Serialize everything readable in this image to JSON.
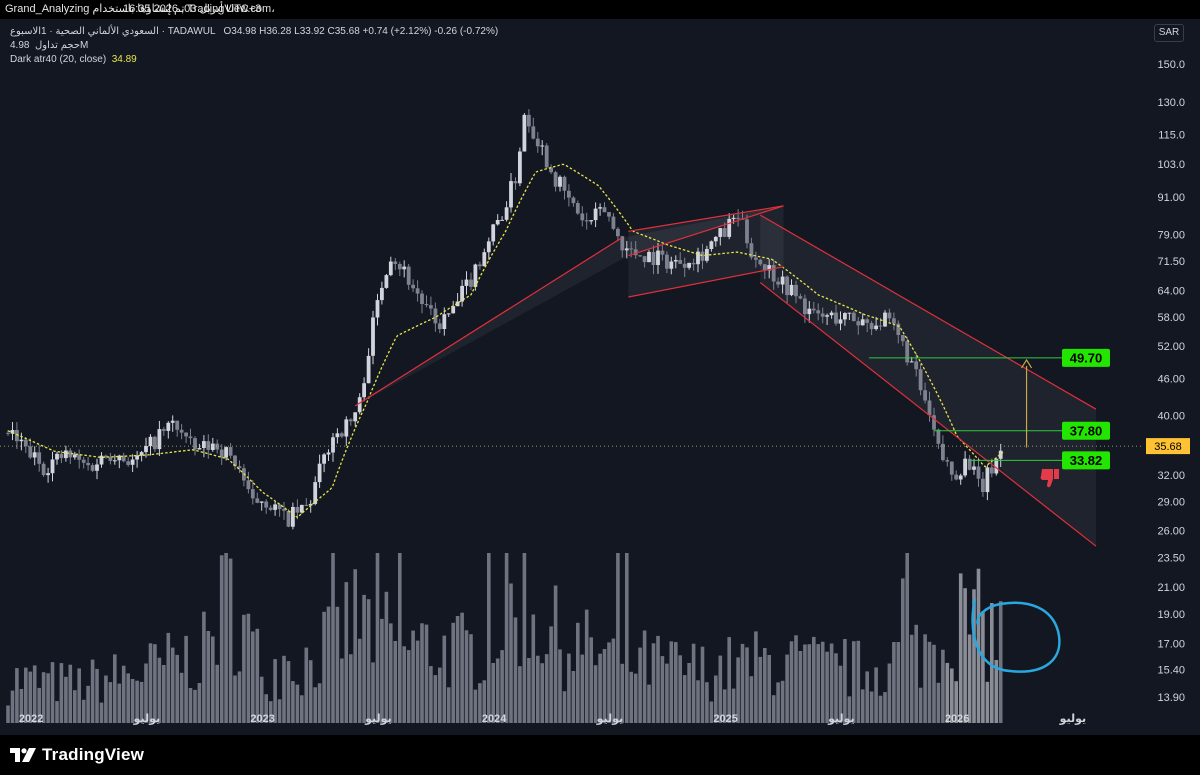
{
  "header": {
    "attribution": "Grand_Analyzing تم إنشاؤها باستخدام TradingView.com،",
    "timestamp": "16:35 2026 ,03 أبريل UTC+3"
  },
  "legend": {
    "symbol": "السعودي الألماني الصحية · 1الاسبوع · TADAWUL",
    "open_label": "O",
    "open": "34.98",
    "high_label": "H",
    "high": "36.28",
    "low_label": "L",
    "low": "33.92",
    "close_label": "C",
    "close": "35.68",
    "change": "+0.74 (+2.12%)",
    "change2": "-0.26 (-0.72%)",
    "volume_label": "حجم تداول",
    "volume": "4.98M",
    "indicator": "Dark atr40 (20, close)",
    "indicator_value": "34.89"
  },
  "currency": "SAR",
  "colors": {
    "background": "#131722",
    "candle_up": "#d1d4dc",
    "candle_down": "#7e8290",
    "moving_average": "#e8e44a",
    "trendline": "#e0303a",
    "target_line": "#2ecc40",
    "target_label_bg": "#22e600",
    "annotation_circle": "#29a8e0"
  },
  "icons": {
    "logo": "tradingview-logo-icon",
    "hand": "thumbs-down-icon"
  },
  "footer": {
    "brand": "TradingView"
  },
  "chart_data": {
    "type": "candlestick",
    "interval": "1W",
    "y_scale": "log",
    "ylim": [
      13.0,
      155.0
    ],
    "y_ticks": [
      "150.0",
      "130.0",
      "115.0",
      "103.0",
      "91.00",
      "79.00",
      "71.50",
      "64.00",
      "58.00",
      "52.00",
      "46.00",
      "40.00",
      "35.68",
      "32.00",
      "29.00",
      "26.00",
      "23.50",
      "21.00",
      "19.00",
      "17.00",
      "15.40",
      "13.90"
    ],
    "current_price": "35.68",
    "x_labels": [
      "2022",
      "يوليو",
      "2023",
      "يوليو",
      "2024",
      "يوليو",
      "2025",
      "يوليو",
      "2026",
      "يوليو"
    ],
    "price_path": [
      [
        2021.9,
        37.5
      ],
      [
        2022.05,
        33
      ],
      [
        2022.15,
        34.5
      ],
      [
        2022.25,
        33
      ],
      [
        2022.35,
        35
      ],
      [
        2022.45,
        33.5
      ],
      [
        2022.55,
        37
      ],
      [
        2022.62,
        39
      ],
      [
        2022.7,
        35
      ],
      [
        2022.8,
        36
      ],
      [
        2022.9,
        33
      ],
      [
        2022.95,
        28.5
      ],
      [
        2023.0,
        29.5
      ],
      [
        2023.1,
        27
      ],
      [
        2023.2,
        28.5
      ],
      [
        2023.3,
        37
      ],
      [
        2023.38,
        39
      ],
      [
        2023.42,
        42
      ],
      [
        2023.5,
        62
      ],
      [
        2023.55,
        74
      ],
      [
        2023.6,
        70
      ],
      [
        2023.68,
        62
      ],
      [
        2023.75,
        56
      ],
      [
        2023.82,
        59
      ],
      [
        2023.9,
        67
      ],
      [
        2023.98,
        78
      ],
      [
        2024.05,
        88
      ],
      [
        2024.1,
        100
      ],
      [
        2024.13,
        125
      ],
      [
        2024.18,
        115
      ],
      [
        2024.25,
        100
      ],
      [
        2024.32,
        90
      ],
      [
        2024.4,
        82
      ],
      [
        2024.48,
        87
      ],
      [
        2024.52,
        80
      ],
      [
        2024.58,
        74
      ],
      [
        2024.68,
        73
      ],
      [
        2024.78,
        71
      ],
      [
        2024.9,
        74
      ],
      [
        2025.0,
        80
      ],
      [
        2025.05,
        85
      ],
      [
        2025.12,
        73
      ],
      [
        2025.25,
        66
      ],
      [
        2025.38,
        58
      ],
      [
        2025.5,
        58
      ],
      [
        2025.6,
        57
      ],
      [
        2025.7,
        57
      ],
      [
        2025.78,
        51
      ],
      [
        2025.86,
        42
      ],
      [
        2025.92,
        35
      ],
      [
        2025.98,
        32
      ],
      [
        2026.05,
        34
      ],
      [
        2026.1,
        30
      ],
      [
        2026.15,
        33
      ],
      [
        2026.2,
        35.68
      ]
    ],
    "volume_path": [
      [
        2021.9,
        0.25
      ],
      [
        2022.2,
        0.22
      ],
      [
        2022.5,
        0.3
      ],
      [
        2022.75,
        0.4
      ],
      [
        2022.85,
        0.75
      ],
      [
        2023.0,
        0.3
      ],
      [
        2023.2,
        0.35
      ],
      [
        2023.4,
        0.6
      ],
      [
        2023.6,
        0.45
      ],
      [
        2023.9,
        0.4
      ],
      [
        2024.1,
        0.7
      ],
      [
        2024.3,
        0.45
      ],
      [
        2024.6,
        0.35
      ],
      [
        2024.9,
        0.3
      ],
      [
        2025.2,
        0.35
      ],
      [
        2025.6,
        0.3
      ],
      [
        2025.9,
        0.45
      ],
      [
        2026.0,
        0.6
      ],
      [
        2026.2,
        0.5
      ]
    ],
    "moving_average": {
      "name": "Dark atr40 (20, close)",
      "points": [
        [
          2021.9,
          37.8
        ],
        [
          2022.1,
          35
        ],
        [
          2022.3,
          34.2
        ],
        [
          2022.5,
          34.5
        ],
        [
          2022.7,
          35.2
        ],
        [
          2022.85,
          34
        ],
        [
          2023.0,
          30
        ],
        [
          2023.15,
          27.3
        ],
        [
          2023.3,
          30.5
        ],
        [
          2023.45,
          42
        ],
        [
          2023.58,
          54
        ],
        [
          2023.75,
          58
        ],
        [
          2023.9,
          63
        ],
        [
          2024.05,
          80
        ],
        [
          2024.18,
          100
        ],
        [
          2024.3,
          103
        ],
        [
          2024.45,
          95
        ],
        [
          2024.6,
          80
        ],
        [
          2024.75,
          76
        ],
        [
          2024.9,
          73
        ],
        [
          2025.05,
          74
        ],
        [
          2025.2,
          72
        ],
        [
          2025.4,
          63
        ],
        [
          2025.6,
          58.5
        ],
        [
          2025.75,
          56
        ],
        [
          2025.88,
          46
        ],
        [
          2026.0,
          37
        ],
        [
          2026.12,
          33
        ],
        [
          2026.2,
          34.89
        ]
      ]
    },
    "channels": [
      {
        "lines": [
          [
            [
              2023.4,
              41.5
            ],
            [
              2024.55,
              78
            ]
          ],
          [
            [
              2024.58,
              73
            ],
            [
              2025.25,
              88
            ]
          ]
        ]
      },
      {
        "lines": [
          [
            [
              2024.58,
              62.5
            ],
            [
              2025.25,
              70
            ]
          ],
          [
            [
              2024.58,
              80
            ],
            [
              2025.25,
              88
            ]
          ]
        ]
      },
      {
        "lines": [
          [
            [
              2025.15,
              85
            ],
            [
              2026.6,
              41
            ]
          ],
          [
            [
              2025.15,
              66
            ],
            [
              2026.6,
              24.5
            ]
          ]
        ]
      }
    ],
    "targets": [
      {
        "label": "49.70",
        "value": 49.7,
        "from": 2025.62
      },
      {
        "label": "37.80",
        "value": 37.8,
        "from": 2025.9
      },
      {
        "label": "33.82",
        "value": 33.82,
        "from": 2026.05
      }
    ]
  }
}
